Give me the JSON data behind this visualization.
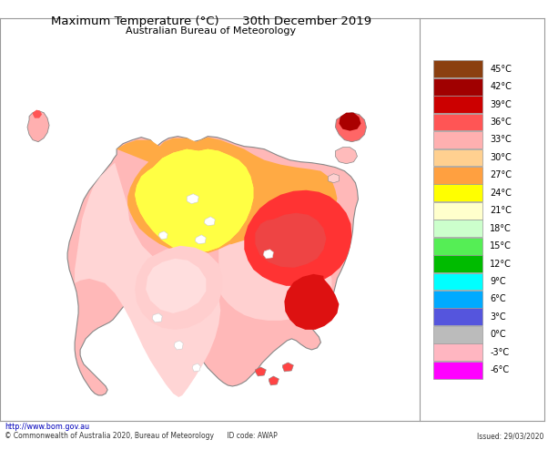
{
  "title_line1": "Maximum Temperature (°C)      30th December 2019",
  "title_line2": "Australian Bureau of Meteorology",
  "footer_left": "http://www.bom.gov.au",
  "footer_copy": "© Commonwealth of Australia 2020, Bureau of Meteorology      ID code: AWAP",
  "footer_right": "Issued: 29/03/2020",
  "legend_labels": [
    "45°C",
    "42°C",
    "39°C",
    "36°C",
    "33°C",
    "30°C",
    "27°C",
    "24°C",
    "21°C",
    "18°C",
    "15°C",
    "12°C",
    "9°C",
    "6°C",
    "3°C",
    "0°C",
    "-3°C",
    "-6°C"
  ],
  "legend_colors": [
    "#8B4010",
    "#A00000",
    "#CC0000",
    "#FF5555",
    "#FFB0B0",
    "#FFD090",
    "#FFA040",
    "#FFFF00",
    "#FFFFCC",
    "#CCFFCC",
    "#55EE55",
    "#00BB00",
    "#00FFFF",
    "#00AAFF",
    "#5555DD",
    "#BBBBBB",
    "#FFB6C1",
    "#FF00FF"
  ],
  "map_bg": "#FFFFFF",
  "border_color": "#999999",
  "background_color": "#FFFFFF"
}
